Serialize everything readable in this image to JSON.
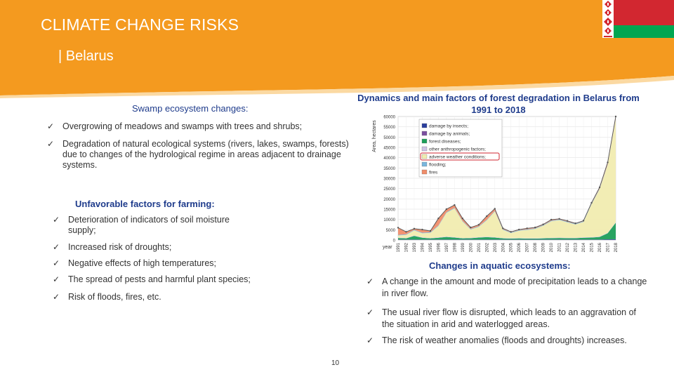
{
  "header": {
    "title": "CLIMATE CHANGE RISKS",
    "subtitle": "| Belarus"
  },
  "swamp": {
    "heading": "Swamp ecosystem changes:",
    "items": [
      "Overgrowing of meadows and swamps with trees and shrubs;",
      "Degradation of natural ecological systems (rivers, lakes, swamps, forests) due to changes of the hydrological regime in areas adjacent to drainage systems."
    ]
  },
  "farming": {
    "heading": "Unfavorable factors for farming:",
    "items": [
      "Deterioration of indicators of soil moisture supply;",
      "Increased risk of droughts;",
      "Negative effects of high temperatures;",
      "The spread of pests and harmful plant species;",
      "Risk of floods, fires, etc."
    ]
  },
  "aquatic": {
    "heading": "Changes in aquatic ecosystems:",
    "items": [
      "A change in the amount and mode of precipitation leads to a change in river flow.",
      "The usual river flow is disrupted, which leads to an aggravation of the situation in arid and waterlogged areas.",
      "The risk of weather anomalies (floods and droughts) increases."
    ]
  },
  "chart_title": "Dynamics and main factors of forest degradation in Belarus from 1991 to 2018",
  "chart_data": {
    "type": "area",
    "ylabel": "Area, hectares",
    "xlabel": "year",
    "ylim": [
      0,
      60000
    ],
    "y_ticks": [
      0,
      5000,
      10000,
      15000,
      20000,
      25000,
      30000,
      35000,
      40000,
      45000,
      50000,
      55000,
      60000
    ],
    "x": [
      1991,
      1992,
      1993,
      1994,
      1995,
      1996,
      1997,
      1998,
      1999,
      2000,
      2001,
      2002,
      2003,
      2004,
      2005,
      2006,
      2007,
      2008,
      2009,
      2010,
      2011,
      2012,
      2013,
      2014,
      2015,
      2016,
      2017,
      2018
    ],
    "series": [
      {
        "name": "damage by insects",
        "color": "#2b3f9e",
        "values": [
          100,
          100,
          100,
          100,
          100,
          100,
          100,
          100,
          100,
          100,
          100,
          100,
          100,
          100,
          100,
          100,
          100,
          100,
          100,
          100,
          100,
          100,
          100,
          100,
          100,
          100,
          200,
          300
        ]
      },
      {
        "name": "damage by animals",
        "color": "#7b4fa0",
        "values": [
          100,
          100,
          100,
          100,
          100,
          100,
          100,
          100,
          100,
          100,
          100,
          100,
          100,
          100,
          100,
          100,
          100,
          100,
          100,
          100,
          100,
          100,
          100,
          100,
          100,
          100,
          100,
          100
        ]
      },
      {
        "name": "forest diseases",
        "color": "#1e9e5a",
        "values": [
          800,
          600,
          1800,
          900,
          600,
          900,
          1300,
          1000,
          600,
          700,
          1000,
          1200,
          1000,
          600,
          500,
          600,
          500,
          500,
          600,
          700,
          800,
          700,
          700,
          900,
          1000,
          1300,
          3000,
          8000
        ]
      },
      {
        "name": "other anthropogenic factors",
        "color": "#cfc3e6",
        "values": [
          200,
          200,
          200,
          200,
          200,
          200,
          200,
          200,
          200,
          200,
          200,
          200,
          200,
          200,
          200,
          200,
          200,
          200,
          200,
          200,
          200,
          200,
          200,
          200,
          200,
          200,
          200,
          200
        ]
      },
      {
        "name": "adverse weather conditions",
        "color": "#f1ecb0",
        "values": [
          1000,
          1500,
          2500,
          2000,
          2500,
          5500,
          11500,
          14000,
          8000,
          4000,
          5000,
          8000,
          12500,
          4000,
          2500,
          3500,
          4000,
          4500,
          6000,
          8000,
          8500,
          7500,
          6500,
          7500,
          16000,
          23000,
          33000,
          50000
        ]
      },
      {
        "name": "flooding",
        "color": "#79b6dd",
        "values": [
          300,
          300,
          300,
          300,
          300,
          300,
          300,
          300,
          300,
          300,
          300,
          300,
          300,
          300,
          300,
          300,
          300,
          300,
          300,
          300,
          300,
          300,
          300,
          300,
          300,
          300,
          300,
          300
        ]
      },
      {
        "name": "fires",
        "color": "#f08d6a",
        "values": [
          3500,
          1200,
          500,
          1500,
          600,
          3400,
          1500,
          1300,
          1200,
          700,
          700,
          1700,
          1000,
          400,
          300,
          300,
          500,
          400,
          300,
          500,
          300,
          400,
          200,
          300,
          400,
          600,
          900,
          1100
        ]
      }
    ]
  },
  "page_number": "10"
}
